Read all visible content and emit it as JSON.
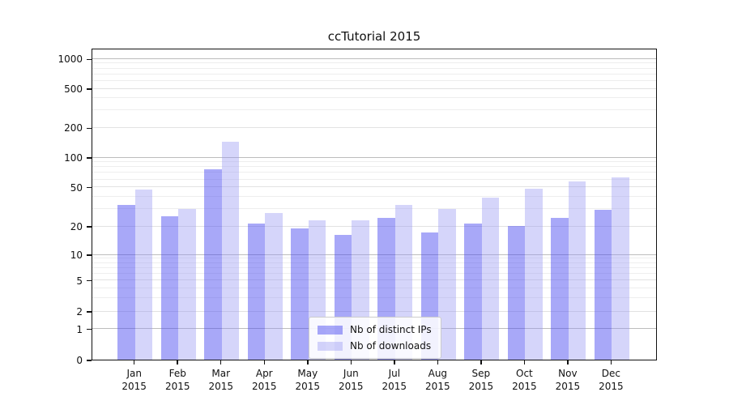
{
  "chart_data": {
    "type": "bar",
    "title": "ccTutorial 2015",
    "categories": [
      "Jan",
      "Feb",
      "Mar",
      "Apr",
      "May",
      "Jun",
      "Jul",
      "Aug",
      "Sep",
      "Oct",
      "Nov",
      "Dec"
    ],
    "category_year": "2015",
    "series": [
      {
        "name": "Nb of distinct IPs",
        "color": "rgba(70,70,240,0.47)",
        "values": [
          33,
          25,
          76,
          21,
          19,
          16,
          24,
          17,
          21,
          20,
          24,
          29
        ]
      },
      {
        "name": "Nb of downloads",
        "color": "rgba(150,150,242,0.40)",
        "values": [
          47,
          30,
          142,
          27,
          23,
          23,
          33,
          30,
          39,
          48,
          57,
          63
        ]
      }
    ],
    "ytick_labels": [
      "0",
      "1",
      "2",
      "5",
      "10",
      "20",
      "50",
      "100",
      "200",
      "500",
      "1000"
    ],
    "ylim": [
      0,
      1000
    ],
    "scale": "log-like",
    "grid": "horizontal",
    "legend_position": "inside-bottom-center",
    "colors": {
      "bar_ips_appearance": "#a8a8f8",
      "bar_downloads_appearance": "#d8d8fa",
      "grid_major": "#bdbdbd",
      "grid_minor": "#eeeeee",
      "axis": "#111111"
    }
  }
}
